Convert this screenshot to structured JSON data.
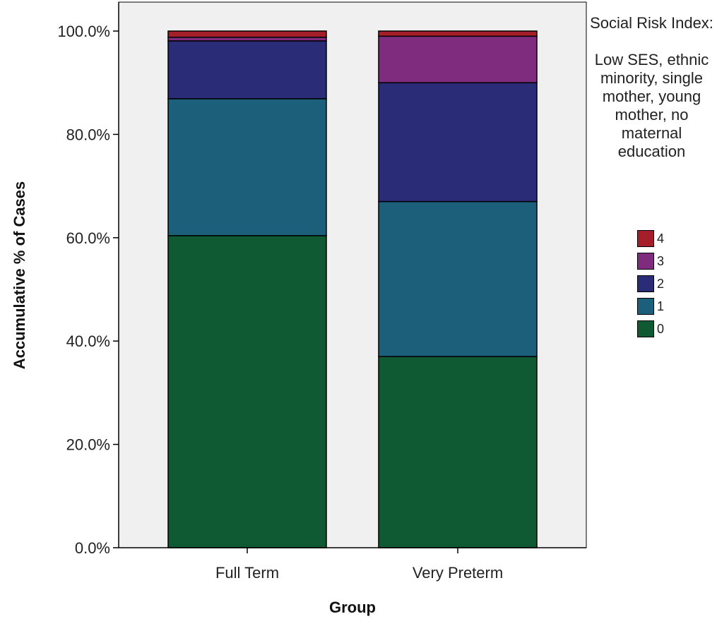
{
  "chart_data": {
    "type": "bar",
    "stacked": true,
    "categories": [
      "Full Term",
      "Very Preterm"
    ],
    "series": [
      {
        "name": "0",
        "color": "#0f5a32",
        "values": [
          60.4,
          37.0
        ]
      },
      {
        "name": "1",
        "color": "#1c5f7a",
        "values": [
          26.5,
          30.0
        ]
      },
      {
        "name": "2",
        "color": "#2a2c78",
        "values": [
          11.2,
          23.0
        ]
      },
      {
        "name": "3",
        "color": "#7f2c7f",
        "values": [
          0.7,
          9.0
        ]
      },
      {
        "name": "4",
        "color": "#a51f2a",
        "values": [
          1.2,
          1.0
        ]
      }
    ],
    "xlabel": "Group",
    "ylabel": "Accumulative % of Cases",
    "ylim": [
      0,
      100
    ],
    "yticks": [
      0,
      20,
      40,
      60,
      80,
      100
    ],
    "ytick_labels": [
      "0.0%",
      "20.0%",
      "40.0%",
      "60.0%",
      "80.0%",
      "100.0%"
    ],
    "legend": {
      "title": "Social Risk Index:\n\nLow SES, ethnic minority, single mother, young mother, no maternal education",
      "order": [
        "4",
        "3",
        "2",
        "1",
        "0"
      ],
      "placement": "right"
    },
    "plot_background": "#f0f0f0",
    "grid": false
  }
}
